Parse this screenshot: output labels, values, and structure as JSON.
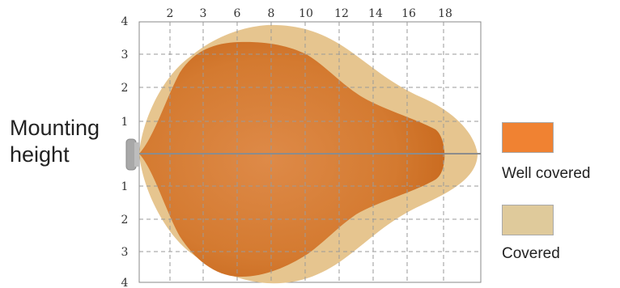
{
  "side_label": {
    "line1": "Mounting",
    "line2": "height"
  },
  "top_ticks": [
    "2",
    "3",
    "6",
    "8",
    "10",
    "12",
    "14",
    "16",
    "18"
  ],
  "left_ticks": [
    "4",
    "3",
    "2",
    "1",
    "",
    "1",
    "2",
    "3",
    "4"
  ],
  "legend": [
    {
      "label": "Well covered",
      "color": "#f08232"
    },
    {
      "label": "Covered",
      "color": "#dfca9b"
    }
  ],
  "colors": {
    "well_covered_area": "#d9742c",
    "covered_area": "#e6c58f",
    "lamp": "#a8a8a8",
    "grid": "#9a9a9a"
  }
}
